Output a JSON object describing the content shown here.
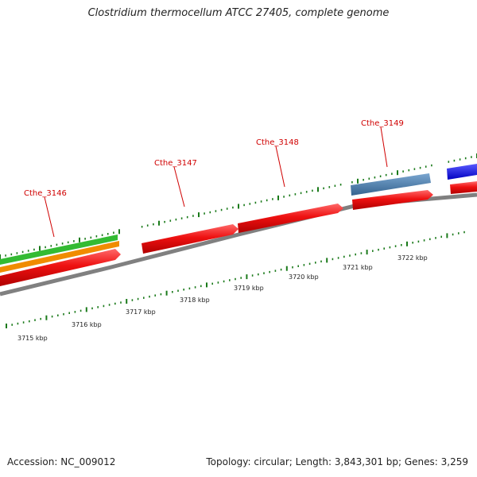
{
  "title": "Clostridium thermocellum ATCC 27405, complete genome",
  "accession": "Accession: NC_009012",
  "summary": "Topology: circular; Length: 3,843,301 bp; Genes: 3,259",
  "colors": {
    "backbone": "#808080",
    "tick": "#1a7a1a",
    "gene_label": "#d00000",
    "red": "#ee1111",
    "orange": "#f08c00",
    "green": "#33bb33",
    "steelblue": "#4a7fb0",
    "blue": "#1a1aee"
  },
  "gene_labels": [
    "Cthe_3146",
    "Cthe_3147",
    "Cthe_3148",
    "Cthe_3149"
  ],
  "kbp_labels": [
    "3715 kbp",
    "3716 kbp",
    "3717 kbp",
    "3718 kbp",
    "3719 kbp",
    "3720 kbp",
    "3721 kbp",
    "3722 kbp"
  ]
}
